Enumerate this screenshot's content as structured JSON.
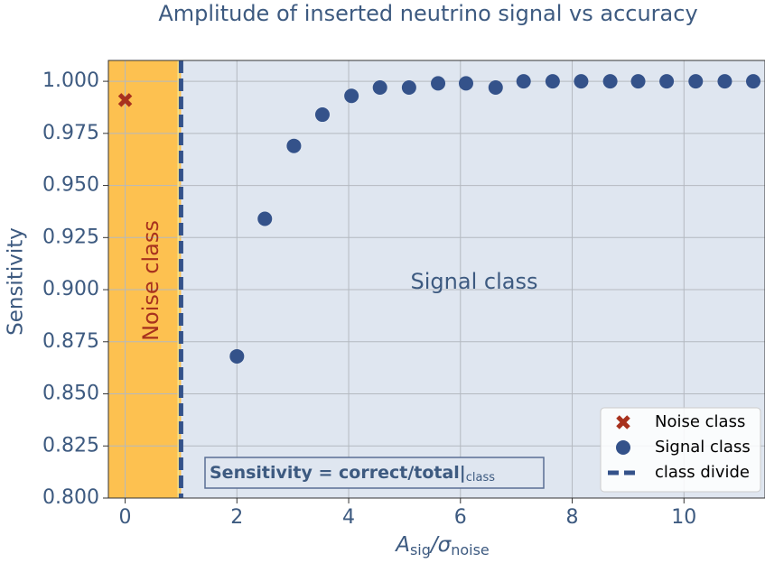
{
  "chart_data": {
    "type": "scatter",
    "title": "Amplitude of inserted neutrino signal vs accuracy",
    "x_label": {
      "main": "A",
      "sub": "sig",
      "mid": "/σ",
      "sub2": "noise"
    },
    "y_label": "Sensitivity",
    "xlim": [
      -0.3,
      11.45
    ],
    "ylim": [
      0.8,
      1.01
    ],
    "xticks": [
      0,
      2,
      4,
      6,
      8,
      10
    ],
    "yticks": [
      {
        "value": 0.8,
        "label": "0.800"
      },
      {
        "value": 0.825,
        "label": "0.825"
      },
      {
        "value": 0.85,
        "label": "0.850"
      },
      {
        "value": 0.875,
        "label": "0.875"
      },
      {
        "value": 0.9,
        "label": "0.900"
      },
      {
        "value": 0.925,
        "label": "0.925"
      },
      {
        "value": 0.95,
        "label": "0.950"
      },
      {
        "value": 0.975,
        "label": "0.975"
      },
      {
        "value": 1.0,
        "label": "1.000"
      }
    ],
    "grid": true,
    "legend": "lower right",
    "series": [
      {
        "name": "Noise class",
        "color": "#a8321e",
        "marker": "x",
        "x": [
          0
        ],
        "values": [
          0.991
        ]
      },
      {
        "name": "Signal class",
        "color": "#34528a",
        "marker": "o",
        "x": [
          2.0,
          2.5,
          3.02,
          3.53,
          4.05,
          4.56,
          5.08,
          5.6,
          6.1,
          6.63,
          7.13,
          7.65,
          8.16,
          8.68,
          9.18,
          9.69,
          10.21,
          10.73,
          11.24
        ],
        "values": [
          0.868,
          0.934,
          0.969,
          0.984,
          0.993,
          0.997,
          0.997,
          0.999,
          0.999,
          0.997,
          1.0,
          1.0,
          1.0,
          1.0,
          1.0,
          1.0,
          1.0,
          1.0,
          1.0
        ]
      }
    ],
    "divide": {
      "name": "class divide",
      "x": 1,
      "color": "#34528a"
    },
    "noise_region_color": "#fdc150",
    "background": "#dfe6f0",
    "annotations": [
      {
        "text": "Noise class",
        "color": "#a8321e"
      },
      {
        "text": "Signal class",
        "color": "#3d5a80"
      }
    ],
    "formula": {
      "text": "Sensitivity = correct/total|",
      "sub": "class"
    }
  }
}
